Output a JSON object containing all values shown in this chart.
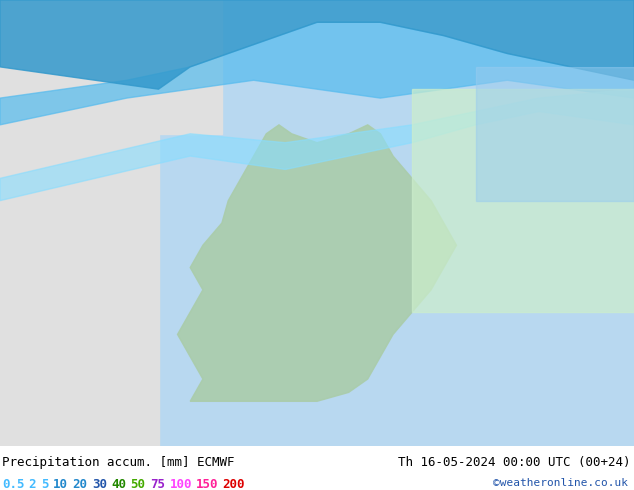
{
  "title_left": "Precipitation accum. [mm] ECMWF",
  "title_right": "Th 16-05-2024 00:00 UTC (00+24)",
  "credit": "©weatheronline.co.uk",
  "legend_values": [
    "0.5",
    "2",
    "5",
    "10",
    "20",
    "30",
    "40",
    "50",
    "75",
    "100",
    "150",
    "200"
  ],
  "legend_colors": [
    "#aaeeff",
    "#77ddff",
    "#44bbff",
    "#2299ee",
    "#0066cc",
    "#0044aa",
    "#228800",
    "#44aa00",
    "#aa44cc",
    "#ff44ff",
    "#ff2299",
    "#ff0000"
  ],
  "bg_color": "#e8e8e8",
  "map_bg": "#f0f0f0",
  "bottom_bar_color": "#ffffff",
  "title_fontsize": 9,
  "legend_fontsize": 9,
  "credit_fontsize": 8,
  "fig_width": 6.34,
  "fig_height": 4.9,
  "dpi": 100
}
